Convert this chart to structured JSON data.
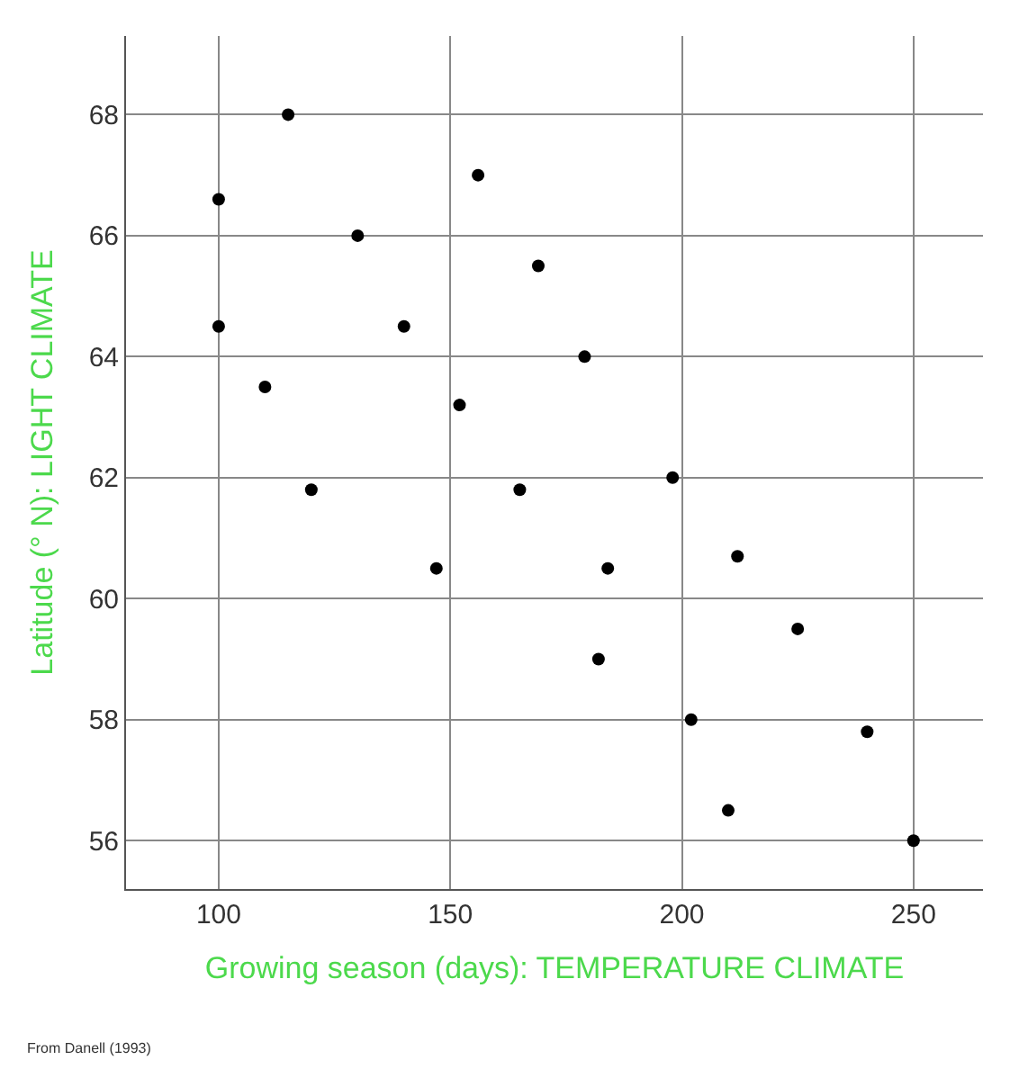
{
  "chart_data": {
    "type": "scatter",
    "xlabel": "Growing season (days): TEMPERATURE CLIMATE",
    "ylabel": "Latitude (° N): LIGHT CLIMATE",
    "x": [
      100,
      115,
      100,
      110,
      120,
      130,
      140,
      156,
      152,
      169,
      165,
      147,
      179,
      184,
      182,
      198,
      212,
      202,
      210,
      225,
      240,
      250
    ],
    "series": [
      {
        "color": "#000000",
        "values": [
          66.6,
          68.0,
          64.5,
          63.5,
          61.8,
          66.0,
          64.5,
          67.0,
          63.2,
          65.5,
          61.8,
          60.5,
          64.0,
          60.5,
          59.0,
          62.0,
          60.7,
          58.0,
          56.5,
          59.5,
          57.8,
          56.0
        ]
      }
    ],
    "xlim": [
      80,
      265
    ],
    "ylim": [
      55.2,
      69.3
    ],
    "xticks": [
      100,
      150,
      200,
      250
    ],
    "yticks": [
      56,
      58,
      60,
      62,
      64,
      66,
      68
    ],
    "grid": true,
    "marker": "circle",
    "annotations": [
      "From Danell (1993)"
    ]
  }
}
